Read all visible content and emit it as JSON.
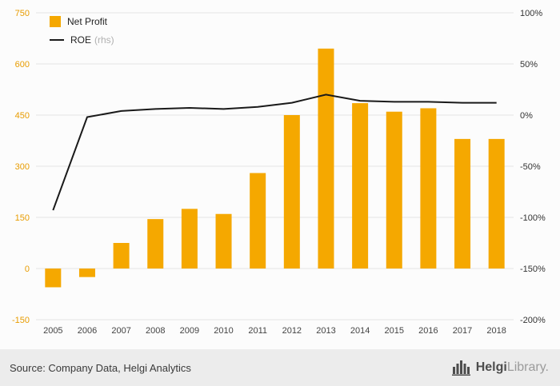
{
  "legend": {
    "net_profit_label": "Net Profit",
    "roe_label": "ROE",
    "roe_suffix": "(rhs)"
  },
  "footer": {
    "source": "Source: Company Data, Helgi Analytics",
    "logo_helgi": "Helgi",
    "logo_library": "Library."
  },
  "colors": {
    "bar": "#F5A800",
    "line": "#1a1a1a",
    "grid": "#e4e4e4",
    "left_axis_label": "#E89C00",
    "right_axis_label": "#333333",
    "x_axis_label": "#444444"
  },
  "chart_data": {
    "type": "bar",
    "title": "",
    "categories": [
      "2005",
      "2006",
      "2007",
      "2008",
      "2009",
      "2010",
      "2011",
      "2012",
      "2013",
      "2014",
      "2015",
      "2016",
      "2017",
      "2018"
    ],
    "series": [
      {
        "name": "Net Profit",
        "type": "bar",
        "axis": "left",
        "values": [
          -55,
          -25,
          75,
          145,
          175,
          160,
          280,
          450,
          645,
          485,
          460,
          470,
          380,
          380
        ]
      },
      {
        "name": "ROE (rhs)",
        "type": "line",
        "axis": "right",
        "values": [
          -93,
          -2,
          4,
          6,
          7,
          6,
          8,
          12,
          20,
          14,
          13,
          13,
          12,
          12
        ]
      }
    ],
    "left_axis": {
      "min": -150,
      "max": 750,
      "ticks": [
        750,
        600,
        450,
        300,
        150,
        0,
        -150
      ]
    },
    "right_axis": {
      "min": -200,
      "max": 100,
      "ticks": [
        100,
        50,
        0,
        -50,
        -100,
        -150,
        -200
      ],
      "format": "percent"
    },
    "legend_position": "top-left",
    "grid": true
  }
}
